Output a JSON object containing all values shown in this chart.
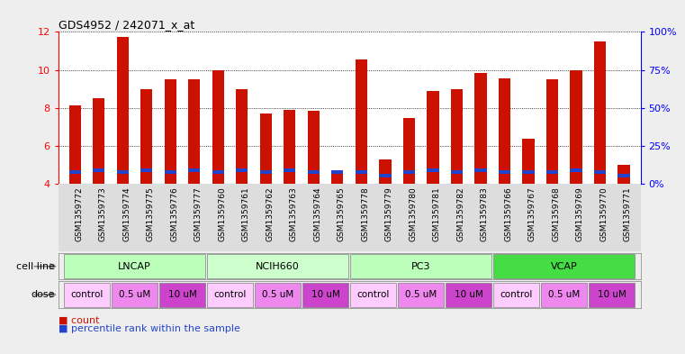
{
  "title": "GDS4952 / 242071_x_at",
  "samples": [
    "GSM1359772",
    "GSM1359773",
    "GSM1359774",
    "GSM1359775",
    "GSM1359776",
    "GSM1359777",
    "GSM1359760",
    "GSM1359761",
    "GSM1359762",
    "GSM1359763",
    "GSM1359764",
    "GSM1359765",
    "GSM1359778",
    "GSM1359779",
    "GSM1359780",
    "GSM1359781",
    "GSM1359782",
    "GSM1359783",
    "GSM1359766",
    "GSM1359767",
    "GSM1359768",
    "GSM1359769",
    "GSM1359770",
    "GSM1359771"
  ],
  "counts": [
    8.15,
    8.5,
    11.75,
    9.0,
    9.5,
    9.5,
    10.0,
    9.0,
    7.7,
    7.9,
    7.85,
    4.6,
    10.55,
    5.3,
    7.45,
    8.9,
    9.0,
    9.85,
    9.55,
    6.4,
    9.5,
    10.0,
    11.5,
    5.0
  ],
  "perc_bottom": [
    4.55,
    4.65,
    4.55,
    4.65,
    4.55,
    4.65,
    4.55,
    4.65,
    4.55,
    4.65,
    4.55,
    4.55,
    4.55,
    4.35,
    4.55,
    4.65,
    4.55,
    4.65,
    4.55,
    4.55,
    4.55,
    4.65,
    4.55,
    4.35
  ],
  "ymin": 4,
  "ymax": 12,
  "cell_lines": [
    {
      "label": "LNCAP",
      "start": 0,
      "end": 6,
      "color": "#bbffbb"
    },
    {
      "label": "NCIH660",
      "start": 6,
      "end": 12,
      "color": "#ccffcc"
    },
    {
      "label": "PC3",
      "start": 12,
      "end": 18,
      "color": "#bbffbb"
    },
    {
      "label": "VCAP",
      "start": 18,
      "end": 24,
      "color": "#44dd44"
    }
  ],
  "doses": [
    {
      "label": "control",
      "start": 0,
      "end": 2,
      "color": "#ffccff"
    },
    {
      "label": "0.5 uM",
      "start": 2,
      "end": 4,
      "color": "#ee88ee"
    },
    {
      "label": "10 uM",
      "start": 4,
      "end": 6,
      "color": "#cc44cc"
    },
    {
      "label": "control",
      "start": 6,
      "end": 8,
      "color": "#ffccff"
    },
    {
      "label": "0.5 uM",
      "start": 8,
      "end": 10,
      "color": "#ee88ee"
    },
    {
      "label": "10 uM",
      "start": 10,
      "end": 12,
      "color": "#cc44cc"
    },
    {
      "label": "control",
      "start": 12,
      "end": 14,
      "color": "#ffccff"
    },
    {
      "label": "0.5 uM",
      "start": 14,
      "end": 16,
      "color": "#ee88ee"
    },
    {
      "label": "10 uM",
      "start": 16,
      "end": 18,
      "color": "#cc44cc"
    },
    {
      "label": "control",
      "start": 18,
      "end": 20,
      "color": "#ffccff"
    },
    {
      "label": "0.5 uM",
      "start": 20,
      "end": 22,
      "color": "#ee88ee"
    },
    {
      "label": "10 uM",
      "start": 22,
      "end": 24,
      "color": "#cc44cc"
    }
  ],
  "bar_color": "#cc1100",
  "percentile_color": "#2244cc",
  "bg_color": "#eeeeee",
  "plot_bg": "#ffffff",
  "xtick_bg": "#dddddd"
}
